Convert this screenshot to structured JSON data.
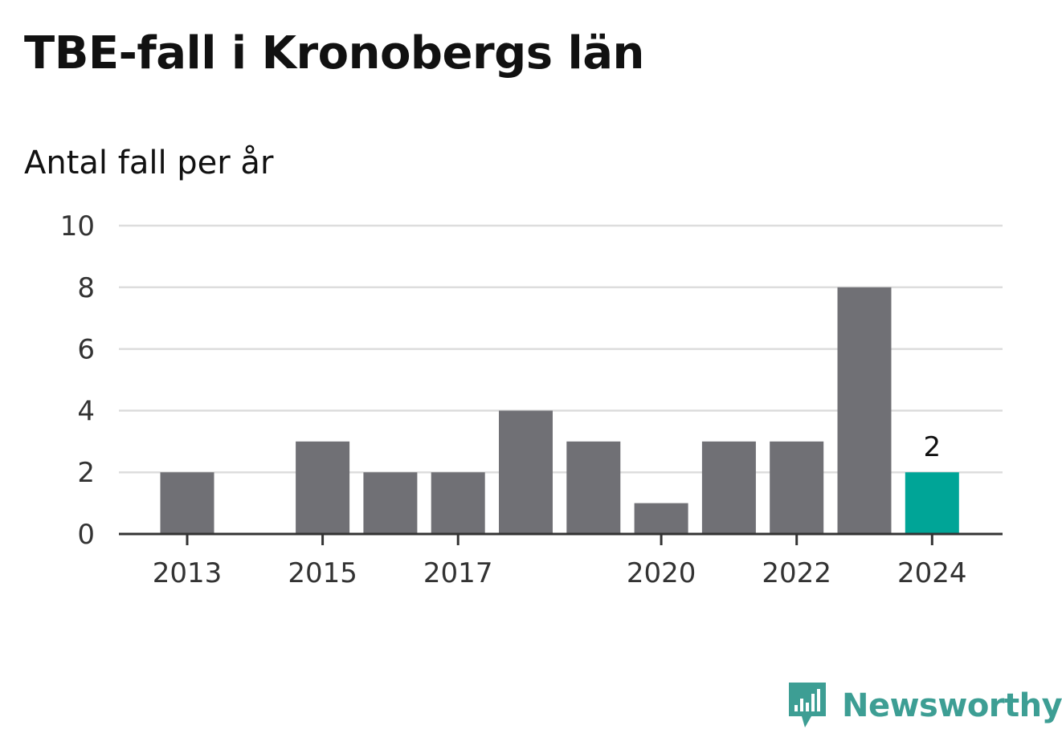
{
  "title": "TBE-fall i Kronobergs län",
  "subtitle": "Antal fall per år",
  "brand": "Newsworthy",
  "colors": {
    "bar": "#707075",
    "highlight": "#00a597",
    "grid": "#dddddd",
    "axis": "#333333",
    "brand": "#3d9e94"
  },
  "chart_data": {
    "type": "bar",
    "title": "TBE-fall i Kronobergs län",
    "subtitle": "Antal fall per år",
    "categories": [
      "2013",
      "2014",
      "2015",
      "2016",
      "2017",
      "2018",
      "2019",
      "2020",
      "2021",
      "2022",
      "2023",
      "2024"
    ],
    "values": [
      2,
      0,
      3,
      2,
      2,
      4,
      3,
      1,
      3,
      3,
      8,
      2
    ],
    "x_tick_labels": [
      "2013",
      "2015",
      "2017",
      "2020",
      "2022",
      "2024"
    ],
    "y_ticks": [
      0,
      2,
      4,
      6,
      8,
      10
    ],
    "ylim": [
      0,
      10
    ],
    "grid": true,
    "highlight": {
      "category": "2024",
      "label": "2"
    }
  }
}
